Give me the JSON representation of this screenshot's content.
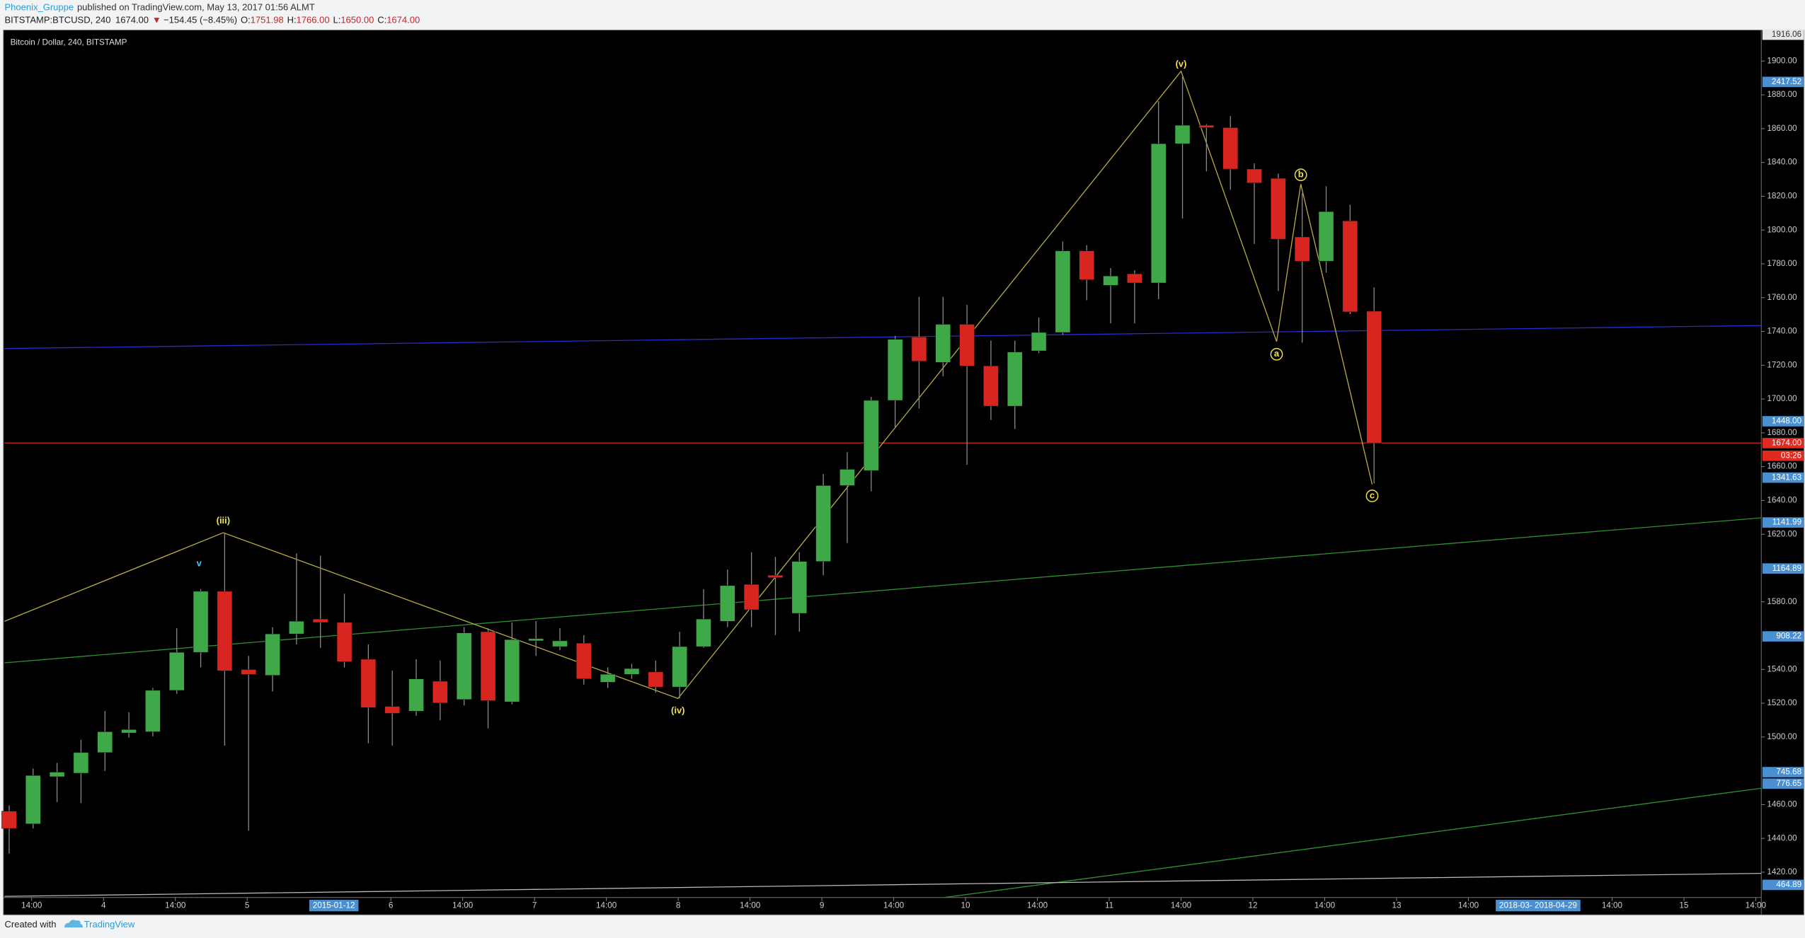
{
  "header": {
    "author": "Phoenix_Gruppe",
    "published": "published on TradingView.com, May 13, 2017 01:56 ALMT",
    "symbol": "BITSTAMP:BTCUSD, 240",
    "last": "1674.00",
    "arrow": "▼",
    "change": "−154.45 (−8.45%)",
    "o_label": "O:",
    "open": "1751.98",
    "h_label": "H:",
    "high": "1766.00",
    "l_label": "L:",
    "low": "1650.00",
    "c_label": "C:",
    "close": "1674.00"
  },
  "footer": {
    "created": "Created with",
    "brand": "TradingView"
  },
  "chart_data": {
    "type": "candlestick",
    "title": "Bitcoin / Dollar, 240, BITSTAMP",
    "up_color": "#3fa94a",
    "down_color": "#d9251f",
    "wick_color": "#8a8a8a",
    "x": [
      0,
      1,
      2,
      3,
      4,
      5,
      6,
      7,
      8,
      9,
      10,
      11,
      12,
      13,
      14,
      15,
      16,
      17,
      18,
      19,
      20,
      21,
      22,
      23,
      24,
      25,
      26,
      27,
      28,
      29,
      30,
      31,
      32,
      33,
      34,
      35,
      36,
      37,
      38,
      39,
      40,
      41,
      42,
      43,
      44,
      45,
      46,
      47,
      48,
      49,
      50,
      51,
      52,
      53,
      54,
      55,
      56,
      57
    ],
    "open": [
      1456.1,
      1448.6,
      1476.5,
      1478.6,
      1490.8,
      1502.4,
      1503.1,
      1527.6,
      1550.1,
      1586.2,
      1539.9,
      1536.5,
      1561,
      1569.8,
      1567.8,
      1546,
      1518.1,
      1515.3,
      1533,
      1522.2,
      1562.3,
      1520.8,
      1556.9,
      1553.5,
      1555.5,
      1532.4,
      1537.1,
      1538.5,
      1529.6,
      1553.5,
      1568.5,
      1590.3,
      1595.7,
      1573.2,
      1603.9,
      1648.8,
      1657.7,
      1699.2,
      1736.7,
      1721.7,
      1744.2,
      1719.6,
      1695.8,
      1728.5,
      1739.4,
      1787.7,
      1767.3,
      1774.1,
      1768.7,
      1851.1,
      1862,
      1860.6,
      1836.1,
      1830.6,
      1795.9,
      1781.6,
      1805.4,
      1751.98
    ],
    "high": [
      1459.5,
      1481.3,
      1484.7,
      1498.3,
      1515.3,
      1514.7,
      1529,
      1564.4,
      1587.5,
      1620.9,
      1548,
      1565,
      1608.6,
      1607.3,
      1584.8,
      1554.8,
      1539.2,
      1546,
      1545.3,
      1565,
      1564.4,
      1567.8,
      1568.5,
      1564.4,
      1560.3,
      1541.2,
      1543.3,
      1545.3,
      1562.3,
      1587.5,
      1599.1,
      1609.3,
      1606.6,
      1609.3,
      1655.6,
      1668.6,
      1701.3,
      1737.4,
      1760.5,
      1760.5,
      1755.7,
      1734.6,
      1734.6,
      1748.2,
      1793.2,
      1791.1,
      1777.5,
      1776.2,
      1876.3,
      1890.6,
      1862.7,
      1867.4,
      1839.5,
      1833.4,
      1821.8,
      1825.9,
      1815,
      1766
    ],
    "low": [
      1431,
      1445.9,
      1461.5,
      1460.9,
      1479.9,
      1499.7,
      1500.4,
      1525.6,
      1541.2,
      1494.9,
      1444.5,
      1526.9,
      1554.8,
      1552.8,
      1541.2,
      1496.3,
      1494.9,
      1512.6,
      1509.9,
      1518.7,
      1505.1,
      1519.4,
      1548,
      1551.4,
      1531,
      1529,
      1534.4,
      1526.2,
      1522.8,
      1552.8,
      1565,
      1565,
      1560.3,
      1562.3,
      1595.7,
      1614.8,
      1645.4,
      1682.9,
      1694.4,
      1713.5,
      1661.1,
      1687.6,
      1682.2,
      1727.1,
      1738,
      1758.5,
      1744.8,
      1744.8,
      1759.1,
      1806.8,
      1834.7,
      1823.8,
      1791.8,
      1763.9,
      1733.3,
      1774.8,
      1750.3,
      1650
    ],
    "close": [
      1445.9,
      1477.2,
      1479.2,
      1490.8,
      1503.1,
      1504.4,
      1527.6,
      1550.1,
      1586.2,
      1539.2,
      1537.1,
      1561,
      1568.5,
      1567.8,
      1544.6,
      1517.4,
      1514,
      1534.4,
      1520.1,
      1561.6,
      1521.5,
      1557.6,
      1558.2,
      1556.9,
      1534.4,
      1537.1,
      1540.5,
      1529.6,
      1553.5,
      1569.8,
      1589.6,
      1575.3,
      1594.3,
      1603.9,
      1648.8,
      1658.4,
      1699.2,
      1735.3,
      1722.4,
      1744.2,
      1719.6,
      1695.8,
      1727.8,
      1739.4,
      1787.7,
      1770.7,
      1772.8,
      1768.7,
      1851.1,
      1862,
      1860.6,
      1836.1,
      1827.9,
      1794.6,
      1781.6,
      1810.9,
      1751.6,
      1674
    ],
    "xlim": [
      -0.19,
      73.17
    ],
    "ylim": [
      1405,
      1919
    ],
    "yticks": [
      {
        "value": 1420,
        "label": "1420.00"
      },
      {
        "value": 1440,
        "label": "1440.00"
      },
      {
        "value": 1460,
        "label": "1460.00"
      },
      {
        "value": 1500,
        "label": "1500.00"
      },
      {
        "value": 1520,
        "label": "1520.00"
      },
      {
        "value": 1540,
        "label": "1540.00"
      },
      {
        "value": 1580,
        "label": "1580.00"
      },
      {
        "value": 1620,
        "label": "1620.00"
      },
      {
        "value": 1640,
        "label": "1640.00"
      },
      {
        "value": 1660,
        "label": "1660.00"
      },
      {
        "value": 1680,
        "label": "1680.00"
      },
      {
        "value": 1700,
        "label": "1700.00"
      },
      {
        "value": 1720,
        "label": "1720.00"
      },
      {
        "value": 1740,
        "label": "1740.00"
      },
      {
        "value": 1760,
        "label": "1760.00"
      },
      {
        "value": 1780,
        "label": "1780.00"
      },
      {
        "value": 1800,
        "label": "1800.00"
      },
      {
        "value": 1820,
        "label": "1820.00"
      },
      {
        "value": 1840,
        "label": "1840.00"
      },
      {
        "value": 1860,
        "label": "1860.00"
      },
      {
        "value": 1880,
        "label": "1880.00"
      },
      {
        "value": 1900,
        "label": "1900.00"
      }
    ],
    "xticks": [
      {
        "value": 0.94,
        "label": "14:00"
      },
      {
        "value": 3.94,
        "label": "4"
      },
      {
        "value": 6.94,
        "label": "14:00"
      },
      {
        "value": 9.94,
        "label": "5"
      },
      {
        "value": 15.94,
        "label": "6"
      },
      {
        "value": 18.94,
        "label": "14:00"
      },
      {
        "value": 21.94,
        "label": "7"
      },
      {
        "value": 24.94,
        "label": "14:00"
      },
      {
        "value": 27.94,
        "label": "8"
      },
      {
        "value": 30.94,
        "label": "14:00"
      },
      {
        "value": 33.94,
        "label": "9"
      },
      {
        "value": 36.94,
        "label": "14:00"
      },
      {
        "value": 39.94,
        "label": "10"
      },
      {
        "value": 42.94,
        "label": "14:00"
      },
      {
        "value": 45.94,
        "label": "11"
      },
      {
        "value": 48.94,
        "label": "14:00"
      },
      {
        "value": 51.94,
        "label": "12"
      },
      {
        "value": 54.94,
        "label": "14:00"
      },
      {
        "value": 57.94,
        "label": "13"
      },
      {
        "value": 60.94,
        "label": "14:00"
      },
      {
        "value": 66.94,
        "label": "14:00"
      },
      {
        "value": 69.94,
        "label": "15"
      },
      {
        "value": 72.94,
        "label": "14:00"
      }
    ],
    "x_markers": [
      {
        "value": 13.56,
        "label": "2015-01-12"
      },
      {
        "value": 63.85,
        "label": "2018-03- 2018-04-29"
      }
    ],
    "lines": [
      {
        "color": "#2a2ad0",
        "x": [
          -0.19,
          73.17
        ],
        "y": [
          1729.9,
          1743.5
        ]
      },
      {
        "color": "#c8201a",
        "x": [
          -0.19,
          73.17
        ],
        "y": [
          1674,
          1674
        ]
      },
      {
        "color": "#2f8f2f",
        "x": [
          -0.19,
          73.17
        ],
        "y": [
          1543.9,
          1629.7
        ]
      },
      {
        "color": "#2f8f2f",
        "x": [
          39.04,
          73.17
        ],
        "y": [
          1405,
          1469.7
        ]
      },
      {
        "color": "#b8b8b8",
        "x": [
          -0.19,
          73.17
        ],
        "y": [
          1405.7,
          1419.3
        ]
      },
      {
        "color": "#b9ab45",
        "x": [
          -0.19,
          8.94,
          27.93,
          48.94,
          52.93,
          53.94,
          56.92
        ],
        "y": [
          1568.5,
          1620.9,
          1522.8,
          1894,
          1734,
          1827.2,
          1649.5
        ]
      }
    ],
    "annotations": [
      {
        "text": "(iii)",
        "x": 8.94,
        "y": 1627.7,
        "color": "#f2e14c"
      },
      {
        "text": "(iv)",
        "x": 27.93,
        "y": 1515.3,
        "color": "#f2e14c"
      },
      {
        "text": "(v)",
        "x": 48.94,
        "y": 1898,
        "color": "#f2e14c"
      },
      {
        "text": "a",
        "x": 52.93,
        "y": 1726.5,
        "color": "#f2e14c",
        "circle": true
      },
      {
        "text": "b",
        "x": 53.94,
        "y": 1832.7,
        "color": "#f2e14c",
        "circle": true
      },
      {
        "text": "c",
        "x": 56.92,
        "y": 1642.7,
        "color": "#f2e14c",
        "circle": true
      },
      {
        "text": "v",
        "x": 7.93,
        "y": 1602.5,
        "color": "#4fc3f7"
      }
    ],
    "price_badges": [
      {
        "label": "1916.06",
        "color": "#e6e6e6",
        "text_color": "#333"
      },
      {
        "label": "2417.52",
        "color": "#4a8fd0",
        "text_color": "#fff"
      },
      {
        "label": "1448.00",
        "color": "#4a8fd0",
        "text_color": "#fff"
      },
      {
        "label": "1674.00",
        "color": "#e0291f",
        "text_color": "#fff"
      },
      {
        "label": "03:26",
        "color": "#e0291f",
        "text_color": "#fff"
      },
      {
        "label": "1341.63",
        "color": "#4a8fd0",
        "text_color": "#fff"
      },
      {
        "label": "1141.99",
        "color": "#4a8fd0",
        "text_color": "#fff"
      },
      {
        "label": "1164.89",
        "color": "#4a8fd0",
        "text_color": "#fff"
      },
      {
        "label": "908.22",
        "color": "#4a8fd0",
        "text_color": "#fff"
      },
      {
        "label": "745.68",
        "color": "#4a8fd0",
        "text_color": "#fff"
      },
      {
        "label": "776.65",
        "color": "#4a8fd0",
        "text_color": "#fff"
      },
      {
        "label": "464.89",
        "color": "#4a8fd0",
        "text_color": "#fff"
      }
    ]
  }
}
